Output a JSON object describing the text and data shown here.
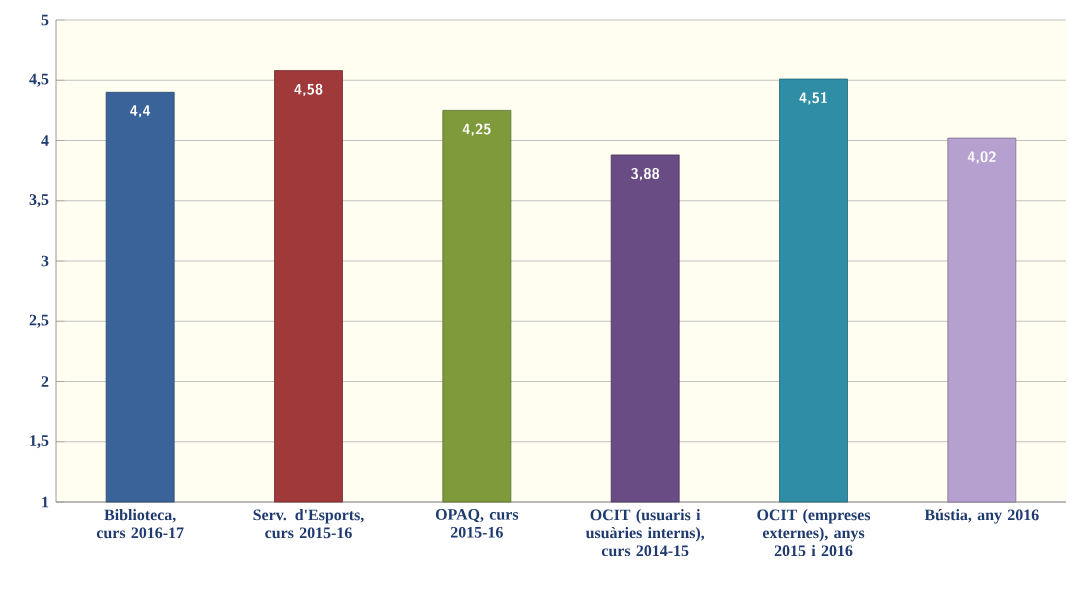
{
  "chart_data": {
    "type": "bar",
    "categories": [
      "Biblioteca, curs 2016-17",
      "Serv. d'Esports, curs 2015-16",
      "OPAQ, curs 2015-16",
      "OCIT (usuaris i usuàries interns), curs 2014-15",
      "OCIT (empreses externes), anys 2015 i 2016",
      "Bústia, any 2016"
    ],
    "values": [
      4.4,
      4.58,
      4.25,
      3.88,
      4.51,
      4.02
    ],
    "value_labels": [
      "4,4",
      "4,58",
      "4,25",
      "3,88",
      "4,51",
      "4,02"
    ],
    "colors": [
      "#3a6399",
      "#a03a3a",
      "#7f9a3a",
      "#6a4c85",
      "#2f8ea6",
      "#b6a0cf"
    ],
    "ylim": [
      1,
      5
    ],
    "yticks": [
      1,
      {
        "value": 1.5,
        "label": "1,5"
      },
      2,
      {
        "value": 2.5,
        "label": "2,5"
      },
      3,
      {
        "value": 3.5,
        "label": "3,5"
      },
      4,
      {
        "value": 4.5,
        "label": "4,5"
      },
      5
    ],
    "grid": "y"
  }
}
